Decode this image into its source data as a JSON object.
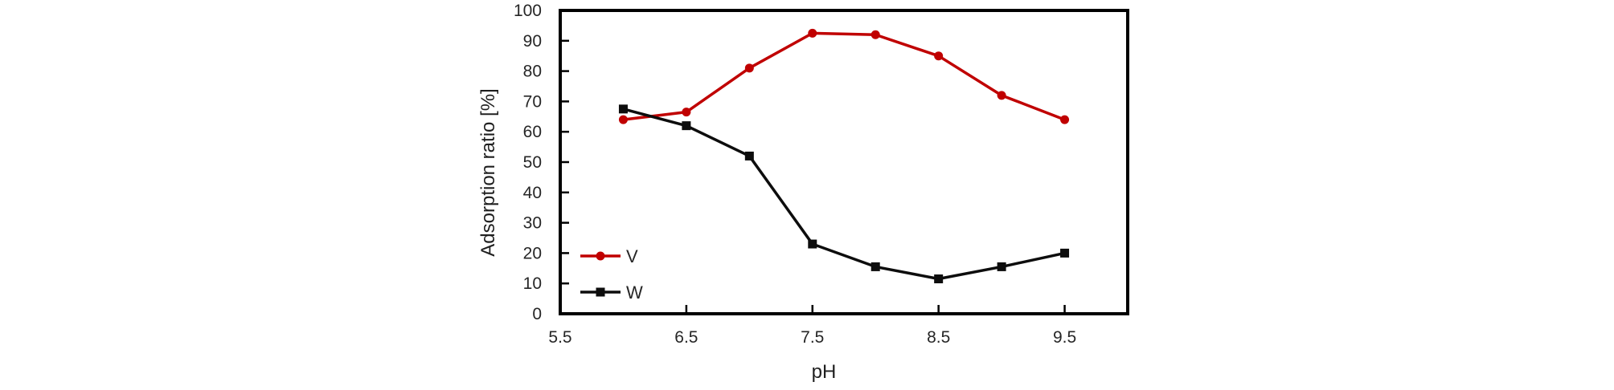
{
  "chart_data": {
    "type": "line",
    "title": "",
    "xlabel": "pH",
    "ylabel": "Adsorption ratio [%]",
    "xlim": [
      5.5,
      10.0
    ],
    "ylim": [
      0,
      100
    ],
    "grid": false,
    "legend_position": "inside-lower-left",
    "xticks": [
      5.5,
      6.5,
      7.5,
      8.5,
      9.5
    ],
    "xtick_labels": [
      "5.5",
      "6.5",
      "7.5",
      "8.5",
      "9.5"
    ],
    "yticks": [
      0,
      10,
      20,
      30,
      40,
      50,
      60,
      70,
      80,
      90,
      100
    ],
    "x": [
      6.0,
      6.5,
      7.0,
      7.5,
      8.0,
      8.5,
      9.0,
      9.5
    ],
    "series": [
      {
        "name": "V",
        "marker": "circle",
        "color": "#c00000",
        "values": [
          64,
          66.5,
          81,
          92.5,
          92,
          85,
          72,
          64
        ]
      },
      {
        "name": "W",
        "marker": "square",
        "color": "#0d0d0d",
        "values": [
          67.5,
          62,
          52,
          23,
          15.5,
          11.5,
          15.5,
          20
        ]
      }
    ],
    "colors": {
      "axis": "#000000",
      "tick_text": "#262626",
      "background": "#ffffff"
    }
  }
}
